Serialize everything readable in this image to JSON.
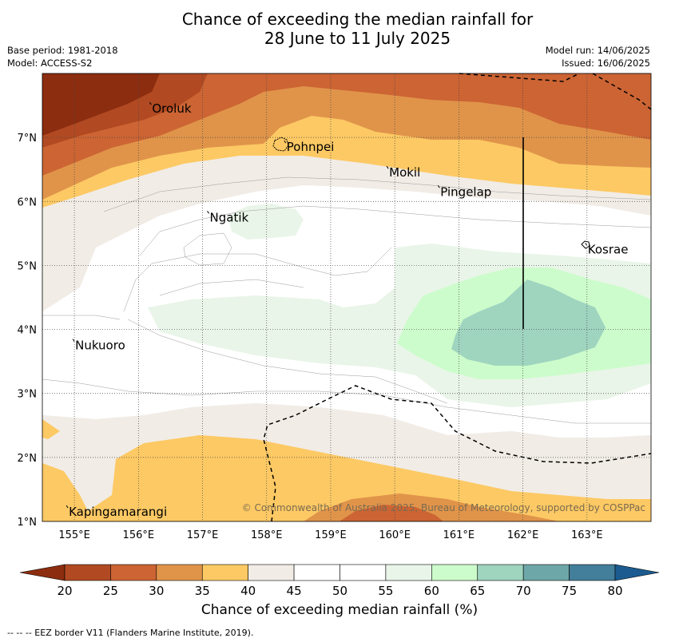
{
  "title_line1": "Chance of exceeding the median rainfall for",
  "title_line2": "28 June to 11 July 2025",
  "meta": {
    "base_period": "Base period: 1981-2018",
    "model": "Model: ACCESS-S2",
    "model_run": "Model run: 14/06/2025",
    "issued": "Issued: 16/06/2025"
  },
  "map": {
    "lon_range": [
      154.5,
      164
    ],
    "lat_range": [
      1,
      8
    ],
    "lon_ticks": [
      155,
      156,
      157,
      158,
      159,
      160,
      161,
      162,
      163
    ],
    "lat_ticks": [
      1,
      2,
      3,
      4,
      5,
      6,
      7
    ],
    "lon_tick_labels": [
      "155°E",
      "156°E",
      "157°E",
      "158°E",
      "159°E",
      "160°E",
      "161°E",
      "162°E",
      "163°E"
    ],
    "lat_tick_labels": [
      "1°N",
      "2°N",
      "3°N",
      "4°N",
      "5°N",
      "6°N",
      "7°N"
    ],
    "places": [
      {
        "name": "Oroluk",
        "lon": 156.2,
        "lat": 7.5
      },
      {
        "name": "Pohnpei",
        "lon": 158.3,
        "lat": 6.9
      },
      {
        "name": "Mokil",
        "lon": 159.9,
        "lat": 6.5
      },
      {
        "name": "Pingelap",
        "lon": 160.7,
        "lat": 6.2
      },
      {
        "name": "Ngatik",
        "lon": 157.1,
        "lat": 5.8
      },
      {
        "name": "Kosrae",
        "lon": 163.0,
        "lat": 5.3
      },
      {
        "name": "Nukuoro",
        "lon": 155.0,
        "lat": 3.8
      },
      {
        "name": "Kapingamarangi",
        "lon": 154.9,
        "lat": 1.2
      }
    ],
    "copyright": "© Commonwealth of Australia 2025, Bureau of Meteorology, supported by COSPPac"
  },
  "colorbar": {
    "ticks": [
      "20",
      "25",
      "30",
      "35",
      "40",
      "45",
      "50",
      "55",
      "60",
      "65",
      "70",
      "75",
      "80"
    ],
    "colors": [
      "#8c2d0f",
      "#b14a22",
      "#cc6433",
      "#e0944a",
      "#fdc964",
      "#f1ece6",
      "#ffffff",
      "#ffffff",
      "#e9f5e8",
      "#ccfccb",
      "#9fd4bf",
      "#6ea7a7",
      "#437e9a",
      "#1b5b8f"
    ],
    "label": "Chance of exceeding median rainfall (%)"
  },
  "footer": "--  --  -- EEZ border V11 (Flanders Marine Institute, 2019)."
}
